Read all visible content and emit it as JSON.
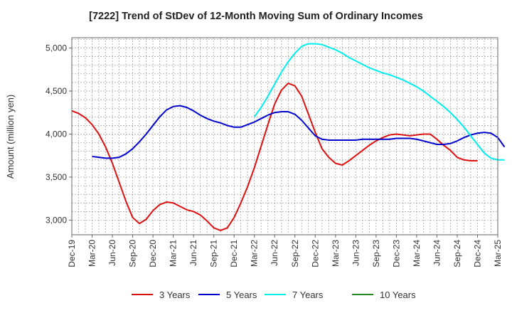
{
  "chart_data": {
    "type": "line",
    "title": "[7222]  Trend of StDev of 12-Month Moving Sum of Ordinary Incomes",
    "xlabel": "",
    "ylabel": "Amount (million yen)",
    "ylim": [
      2830,
      5120
    ],
    "y_ticks": [
      3000,
      3500,
      4000,
      4500,
      5000
    ],
    "y_tick_labels": [
      "3,000",
      "3,500",
      "4,000",
      "4,500",
      "5,000"
    ],
    "x_tick_labels": [
      "Dec-19",
      "Mar-20",
      "Jun-20",
      "Sep-20",
      "Dec-20",
      "Mar-21",
      "Jun-21",
      "Sep-21",
      "Dec-21",
      "Mar-22",
      "Jun-22",
      "Sep-22",
      "Dec-22",
      "Mar-23",
      "Jun-23",
      "Sep-23",
      "Dec-23",
      "Mar-24",
      "Jun-24",
      "Sep-24",
      "Dec-24",
      "Mar-25"
    ],
    "x_unit": "month index from Dec-19",
    "grid": true,
    "legend_position": "bottom",
    "series": [
      {
        "name": "3 Years",
        "color": "#dd1111",
        "start_month": 0,
        "values": [
          4270,
          4240,
          4190,
          4110,
          4000,
          3850,
          3660,
          3440,
          3220,
          3030,
          2960,
          3010,
          3110,
          3180,
          3210,
          3200,
          3160,
          3120,
          3100,
          3060,
          2990,
          2910,
          2880,
          2910,
          3030,
          3200,
          3390,
          3610,
          3860,
          4110,
          4350,
          4510,
          4590,
          4560,
          4440,
          4230,
          4020,
          3830,
          3730,
          3660,
          3640,
          3690,
          3750,
          3810,
          3870,
          3920,
          3960,
          3990,
          4000,
          3990,
          3980,
          3990,
          4000,
          4000,
          3940,
          3870,
          3810,
          3730,
          3700,
          3690,
          3690
        ]
      },
      {
        "name": "5 Years",
        "color": "#0000cc",
        "start_month": 3,
        "values": [
          3740,
          3730,
          3720,
          3720,
          3730,
          3770,
          3830,
          3910,
          4000,
          4100,
          4200,
          4280,
          4320,
          4330,
          4310,
          4270,
          4220,
          4180,
          4150,
          4130,
          4100,
          4080,
          4080,
          4110,
          4140,
          4180,
          4220,
          4250,
          4260,
          4260,
          4230,
          4160,
          4070,
          3980,
          3940,
          3930,
          3930,
          3930,
          3930,
          3930,
          3940,
          3940,
          3940,
          3940,
          3940,
          3950,
          3950,
          3950,
          3940,
          3920,
          3900,
          3880,
          3880,
          3890,
          3920,
          3960,
          3990,
          4010,
          4020,
          4010,
          3960,
          3850
        ]
      },
      {
        "name": "7 Years",
        "color": "#00eeee",
        "start_month": 27,
        "values": [
          4200,
          4310,
          4440,
          4580,
          4720,
          4840,
          4940,
          5020,
          5050,
          5050,
          5040,
          5010,
          4980,
          4940,
          4890,
          4850,
          4810,
          4770,
          4740,
          4710,
          4690,
          4660,
          4630,
          4590,
          4550,
          4500,
          4440,
          4380,
          4320,
          4250,
          4170,
          4080,
          3980,
          3880,
          3780,
          3720,
          3700,
          3700
        ]
      },
      {
        "name": "10 Years",
        "color": "#228B22",
        "start_month": 0,
        "values": []
      }
    ]
  }
}
